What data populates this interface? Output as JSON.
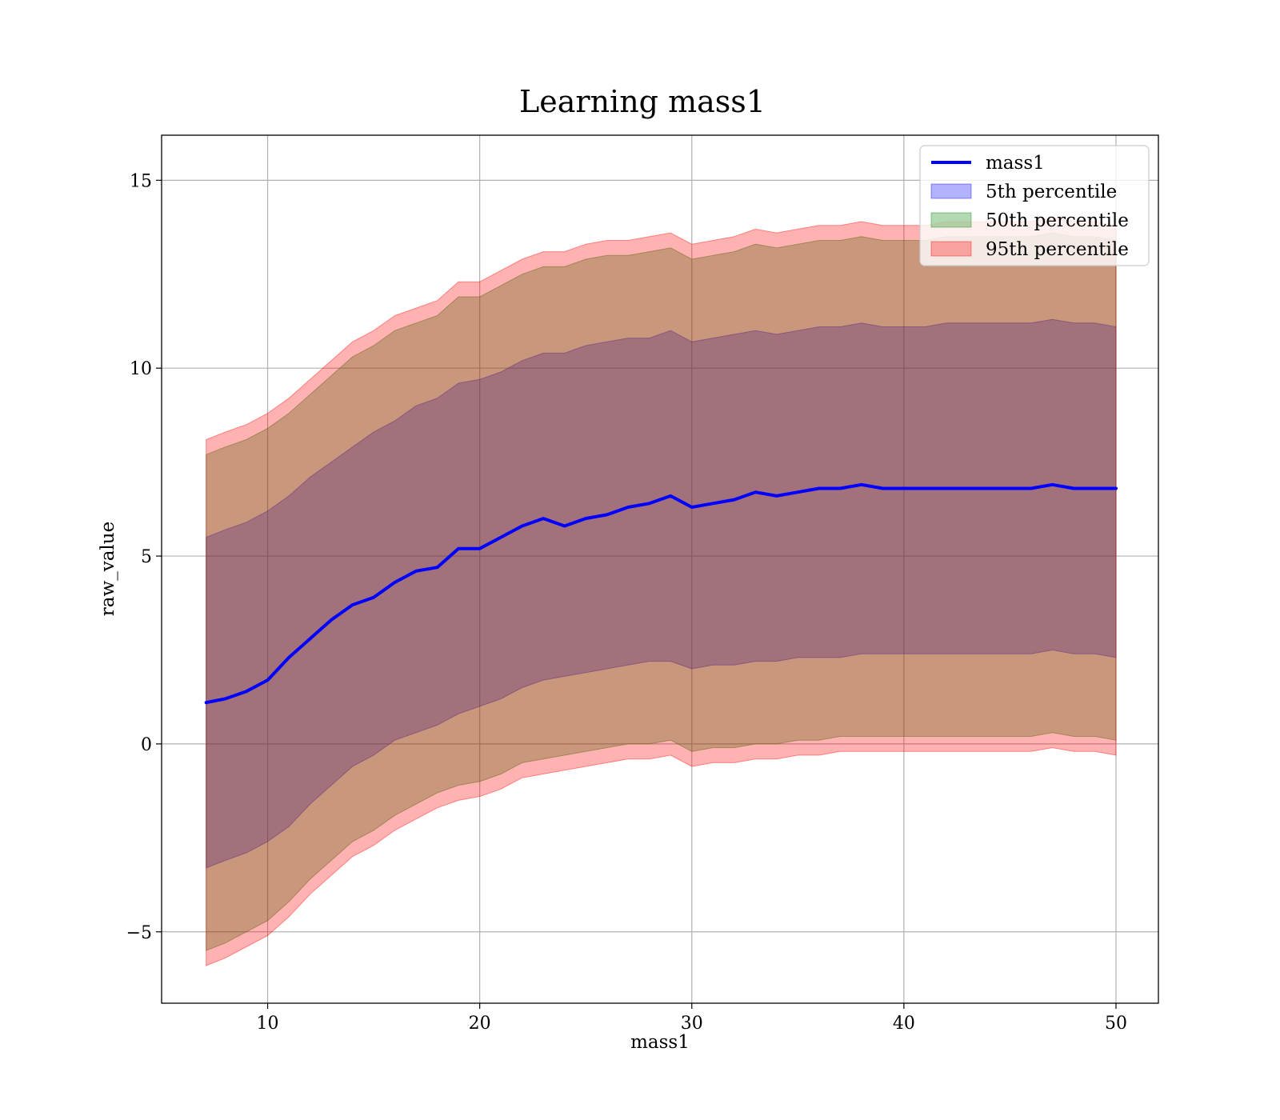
{
  "chart_data": {
    "type": "area",
    "title": "Learning mass1",
    "xlabel": "mass1",
    "ylabel": "raw_value",
    "xlim": [
      5,
      52
    ],
    "ylim": [
      -6.9,
      16.2
    ],
    "x_ticks": [
      10,
      20,
      30,
      40,
      50
    ],
    "y_ticks": [
      -5,
      0,
      5,
      10,
      15
    ],
    "x_tick_labels": [
      "10",
      "20",
      "30",
      "40",
      "50"
    ],
    "y_tick_labels": [
      "−5",
      "0",
      "5",
      "10",
      "15"
    ],
    "grid": true,
    "legend_position": "top-right",
    "legend": [
      {
        "label": "mass1",
        "kind": "line",
        "color": "#0000ff"
      },
      {
        "label": "5th percentile",
        "kind": "patch",
        "color": "#0000ff"
      },
      {
        "label": "50th percentile",
        "kind": "patch",
        "color": "#008000"
      },
      {
        "label": "95th percentile",
        "kind": "patch",
        "color": "#ff0000"
      }
    ],
    "x": [
      7.1,
      8,
      9,
      10,
      11,
      12,
      13,
      14,
      15,
      16,
      17,
      18,
      19,
      20,
      21,
      22,
      23,
      24,
      25,
      26,
      27,
      28,
      29,
      30,
      31,
      32,
      33,
      34,
      35,
      36,
      37,
      38,
      39,
      40,
      41,
      42,
      43,
      44,
      45,
      46,
      47,
      48,
      49,
      50
    ],
    "series": [
      {
        "name": "mass1",
        "kind": "line",
        "color": "#0000ff",
        "values": [
          1.1,
          1.2,
          1.4,
          1.7,
          2.3,
          2.8,
          3.3,
          3.7,
          3.9,
          4.3,
          4.6,
          4.7,
          5.2,
          5.2,
          5.5,
          5.8,
          6.0,
          5.8,
          6.0,
          6.1,
          6.3,
          6.4,
          6.6,
          6.3,
          6.4,
          6.5,
          6.7,
          6.6,
          6.7,
          6.8,
          6.8,
          6.9,
          6.8,
          6.8,
          6.8,
          6.8,
          6.8,
          6.8,
          6.8,
          6.8,
          6.9,
          6.8,
          6.8,
          6.8
        ]
      },
      {
        "name": "5th percentile",
        "kind": "band",
        "color": "#0000ff",
        "opacity": 0.3,
        "lower": [
          -3.3,
          -3.1,
          -2.9,
          -2.6,
          -2.2,
          -1.6,
          -1.1,
          -0.6,
          -0.3,
          0.1,
          0.3,
          0.5,
          0.8,
          1.0,
          1.2,
          1.5,
          1.7,
          1.8,
          1.9,
          2.0,
          2.1,
          2.2,
          2.2,
          2.0,
          2.1,
          2.1,
          2.2,
          2.2,
          2.3,
          2.3,
          2.3,
          2.4,
          2.4,
          2.4,
          2.4,
          2.4,
          2.4,
          2.4,
          2.4,
          2.4,
          2.5,
          2.4,
          2.4,
          2.3
        ],
        "upper": [
          5.5,
          5.7,
          5.9,
          6.2,
          6.6,
          7.1,
          7.5,
          7.9,
          8.3,
          8.6,
          9.0,
          9.2,
          9.6,
          9.7,
          9.9,
          10.2,
          10.4,
          10.4,
          10.6,
          10.7,
          10.8,
          10.8,
          11.0,
          10.7,
          10.8,
          10.9,
          11.0,
          10.9,
          11.0,
          11.1,
          11.1,
          11.2,
          11.1,
          11.1,
          11.1,
          11.2,
          11.2,
          11.2,
          11.2,
          11.2,
          11.3,
          11.2,
          11.2,
          11.1
        ]
      },
      {
        "name": "50th percentile",
        "kind": "band",
        "color": "#008000",
        "opacity": 0.3,
        "lower": [
          -5.5,
          -5.3,
          -5.0,
          -4.7,
          -4.2,
          -3.6,
          -3.1,
          -2.6,
          -2.3,
          -1.9,
          -1.6,
          -1.3,
          -1.1,
          -1.0,
          -0.8,
          -0.5,
          -0.4,
          -0.3,
          -0.2,
          -0.1,
          0.0,
          0.0,
          0.1,
          -0.2,
          -0.1,
          -0.1,
          0.0,
          0.0,
          0.1,
          0.1,
          0.2,
          0.2,
          0.2,
          0.2,
          0.2,
          0.2,
          0.2,
          0.2,
          0.2,
          0.2,
          0.3,
          0.2,
          0.2,
          0.1
        ],
        "upper": [
          7.7,
          7.9,
          8.1,
          8.4,
          8.8,
          9.3,
          9.8,
          10.3,
          10.6,
          11.0,
          11.2,
          11.4,
          11.9,
          11.9,
          12.2,
          12.5,
          12.7,
          12.7,
          12.9,
          13.0,
          13.0,
          13.1,
          13.2,
          12.9,
          13.0,
          13.1,
          13.3,
          13.2,
          13.3,
          13.4,
          13.4,
          13.5,
          13.4,
          13.4,
          13.4,
          13.5,
          13.5,
          13.5,
          13.5,
          13.5,
          13.6,
          13.5,
          13.5,
          13.4
        ]
      },
      {
        "name": "95th percentile",
        "kind": "band",
        "color": "#ff0000",
        "opacity": 0.3,
        "lower": [
          -5.9,
          -5.7,
          -5.4,
          -5.1,
          -4.6,
          -4.0,
          -3.5,
          -3.0,
          -2.7,
          -2.3,
          -2.0,
          -1.7,
          -1.5,
          -1.4,
          -1.2,
          -0.9,
          -0.8,
          -0.7,
          -0.6,
          -0.5,
          -0.4,
          -0.4,
          -0.3,
          -0.6,
          -0.5,
          -0.5,
          -0.4,
          -0.4,
          -0.3,
          -0.3,
          -0.2,
          -0.2,
          -0.2,
          -0.2,
          -0.2,
          -0.2,
          -0.2,
          -0.2,
          -0.2,
          -0.2,
          -0.1,
          -0.2,
          -0.2,
          -0.3
        ],
        "upper": [
          8.1,
          8.3,
          8.5,
          8.8,
          9.2,
          9.7,
          10.2,
          10.7,
          11.0,
          11.4,
          11.6,
          11.8,
          12.3,
          12.3,
          12.6,
          12.9,
          13.1,
          13.1,
          13.3,
          13.4,
          13.4,
          13.5,
          13.6,
          13.3,
          13.4,
          13.5,
          13.7,
          13.6,
          13.7,
          13.8,
          13.8,
          13.9,
          13.8,
          13.8,
          13.8,
          13.9,
          13.9,
          13.9,
          13.9,
          13.9,
          14.0,
          13.9,
          13.9,
          13.8
        ]
      }
    ]
  }
}
